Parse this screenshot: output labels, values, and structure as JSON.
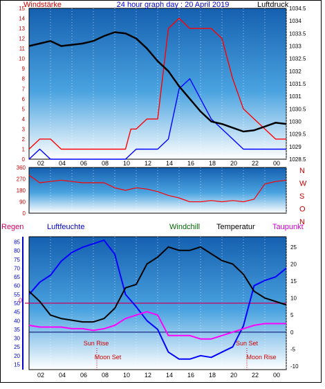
{
  "header": {
    "left_label": "Windstärke",
    "title": "24 hour graph day : 20 April 2019",
    "right_label": "Luftdruck"
  },
  "panel3_header": {
    "regen": "Regen",
    "luftfeuchte": "Luftfeuchte",
    "windchill": "Windchill",
    "temperatur": "Temperatur",
    "taupunkt": "Taupunkt"
  },
  "colors": {
    "wind": "#ff0000",
    "gust": "#0000ff",
    "pressure": "#000000",
    "humidity": "#0000ff",
    "temperature": "#000000",
    "dewpoint": "#ff00ff",
    "rain": "#cc0000",
    "freeze_line": "#cc0066",
    "sky_top": "#1560b0",
    "sky_bottom": "#ffffff"
  },
  "chart_data": [
    {
      "type": "line",
      "name": "wind_and_pressure",
      "x_tick_labels": [
        "02",
        "04",
        "06",
        "08",
        "10",
        "12",
        "14",
        "16",
        "18",
        "20",
        "22",
        "00"
      ],
      "left_axis": {
        "label": "Windstärke",
        "ticks": [
          "0",
          "1",
          "2",
          "3",
          "4",
          "5",
          "6",
          "7",
          "8",
          "9",
          "10",
          "11",
          "12",
          "13",
          "14",
          "15"
        ],
        "ylim": [
          0,
          15
        ]
      },
      "right_axis": {
        "label": "Luftdruck",
        "ticks": [
          "1028.5",
          "1029",
          "1029.5",
          "1030",
          "1030.5",
          "1031",
          "1031.5",
          "1032",
          "1032.5",
          "1033",
          "1033.5",
          "1034",
          "1034.5"
        ],
        "ylim": [
          1028.5,
          1034.5
        ]
      },
      "series": [
        {
          "key": "pressure",
          "axis": "right",
          "x": [
            0,
            1,
            2,
            3,
            4,
            5,
            6,
            7,
            8,
            9,
            10,
            11,
            12,
            13,
            14,
            15,
            16,
            17,
            18,
            19,
            20,
            21,
            22,
            23,
            24
          ],
          "values": [
            1033.0,
            1033.1,
            1033.2,
            1033.0,
            1033.05,
            1033.1,
            1033.2,
            1033.4,
            1033.55,
            1033.5,
            1033.3,
            1032.9,
            1032.4,
            1032.0,
            1031.4,
            1030.9,
            1030.4,
            1030.0,
            1029.9,
            1029.75,
            1029.6,
            1029.65,
            1029.8,
            1029.95,
            1029.9
          ]
        },
        {
          "key": "wind_max",
          "axis": "left",
          "x": [
            0,
            1,
            2,
            3,
            4,
            5,
            6,
            7,
            8,
            9,
            9.5,
            10,
            11,
            12,
            13,
            14,
            15,
            16,
            17,
            18,
            19,
            20,
            21,
            22,
            23,
            24
          ],
          "values": [
            1,
            2,
            2,
            1,
            1,
            1,
            1,
            1,
            1,
            1,
            3,
            3,
            4,
            4,
            13,
            14,
            13,
            13,
            13,
            12,
            8,
            5,
            4,
            3,
            2,
            2
          ]
        },
        {
          "key": "wind_avg",
          "axis": "left",
          "x": [
            0,
            1,
            2,
            3,
            4,
            5,
            6,
            7,
            8,
            9,
            10,
            11,
            12,
            13,
            14,
            15,
            16,
            17,
            18,
            19,
            20,
            21,
            22,
            23,
            24
          ],
          "values": [
            0,
            1,
            0,
            0,
            0,
            0,
            0,
            0,
            0,
            0,
            1,
            1,
            1,
            2,
            7,
            8,
            6,
            4,
            3,
            2,
            1,
            1,
            1,
            1,
            1
          ]
        }
      ]
    },
    {
      "type": "line",
      "name": "wind_direction",
      "x_tick_labels": [
        "02",
        "04",
        "06",
        "08",
        "10",
        "12",
        "14",
        "16",
        "18",
        "20",
        "22",
        "00"
      ],
      "left_axis": {
        "ticks": [
          "0",
          "90",
          "180",
          "270",
          "360"
        ],
        "ylim": [
          0,
          360
        ]
      },
      "right_labels": [
        "N",
        "W",
        "S",
        "O",
        "N"
      ],
      "series": [
        {
          "key": "direction",
          "x": [
            0,
            1,
            2,
            3,
            4,
            5,
            6,
            7,
            8,
            9,
            10,
            11,
            12,
            13,
            14,
            15,
            16,
            17,
            18,
            19,
            20,
            21,
            22,
            23,
            24
          ],
          "values": [
            300,
            240,
            250,
            260,
            250,
            240,
            240,
            240,
            200,
            180,
            200,
            190,
            170,
            140,
            120,
            90,
            90,
            100,
            90,
            100,
            90,
            110,
            230,
            250,
            260
          ]
        }
      ]
    },
    {
      "type": "line",
      "name": "temperature_humidity",
      "x_tick_labels": [
        "02",
        "04",
        "06",
        "08",
        "10",
        "12",
        "14",
        "16",
        "18",
        "20",
        "22",
        "00"
      ],
      "left_axis": {
        "label": "Luftfeuchte",
        "ticks": [
          "15",
          "20",
          "25",
          "30",
          "35",
          "40",
          "45",
          "50",
          "55",
          "60",
          "65",
          "70",
          "75",
          "80",
          "85"
        ],
        "ylim": [
          12,
          88
        ]
      },
      "right_axis": {
        "label": "Temperatur",
        "ticks": [
          "-10",
          "-5",
          "0",
          "5",
          "10",
          "15",
          "20",
          "25"
        ],
        "ylim": [
          -11,
          28
        ]
      },
      "annotations": [
        "Sun Rise",
        "Moon Set",
        "Sun Set",
        "Moon Rise",
        "0"
      ],
      "series": [
        {
          "key": "humidity",
          "axis": "left",
          "x": [
            0,
            1,
            2,
            3,
            4,
            5,
            6,
            7,
            8,
            9,
            10,
            11,
            12,
            13,
            14,
            15,
            16,
            17,
            18,
            19,
            20,
            21,
            22,
            23,
            24
          ],
          "values": [
            55,
            62,
            66,
            74,
            79,
            82,
            84,
            86,
            78,
            55,
            48,
            40,
            35,
            22,
            18,
            18,
            20,
            19,
            22,
            25,
            37,
            60,
            63,
            65,
            70
          ]
        },
        {
          "key": "temperature",
          "axis": "right",
          "x": [
            0,
            1,
            2,
            3,
            4,
            5,
            6,
            7,
            8,
            9,
            10,
            11,
            12,
            13,
            14,
            15,
            16,
            17,
            18,
            19,
            20,
            21,
            22,
            23,
            24
          ],
          "values": [
            12,
            9,
            5,
            4,
            3.5,
            3,
            3,
            4,
            7,
            13,
            14,
            20,
            22,
            25,
            24,
            24,
            25,
            23,
            21,
            20,
            17,
            12,
            10,
            9,
            8
          ]
        },
        {
          "key": "dewpoint",
          "axis": "right",
          "x": [
            0,
            1,
            2,
            3,
            4,
            5,
            6,
            7,
            8,
            9,
            10,
            11,
            12,
            13,
            14,
            15,
            16,
            17,
            18,
            19,
            20,
            21,
            22,
            23,
            24
          ],
          "values": [
            2,
            1.5,
            1.5,
            1.5,
            1,
            1,
            0.5,
            1,
            2,
            4,
            5,
            6,
            5,
            -1,
            -1,
            -1,
            -2,
            -2,
            -1,
            0,
            1,
            2,
            2.5,
            2.5,
            2.5
          ]
        },
        {
          "key": "rain",
          "axis": "right",
          "x": [
            0,
            24
          ],
          "values": [
            0,
            0
          ]
        }
      ]
    }
  ]
}
